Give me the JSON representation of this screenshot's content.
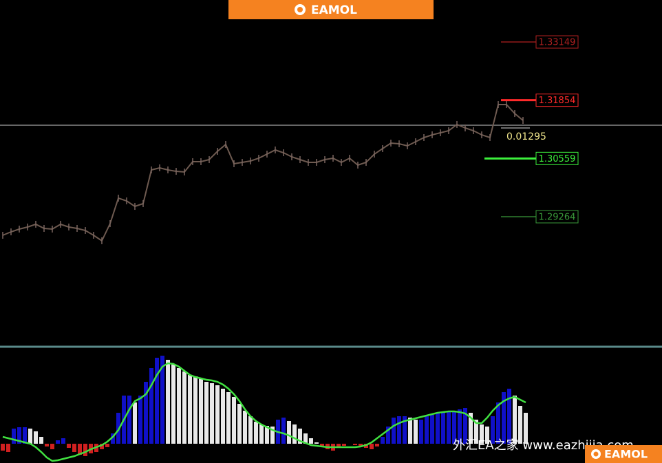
{
  "header": {
    "logo": "EAMOL"
  },
  "levels": [
    {
      "value": 1.33149,
      "color": "#b02020"
    },
    {
      "value": 1.31854,
      "color": "#ff2a2a"
    },
    {
      "value": 1.30559,
      "color": "#3cf03c"
    },
    {
      "value": 1.29264,
      "color": "#3a9a3a"
    }
  ],
  "range_label": 0.01295,
  "price": [
    1.28851,
    1.28927,
    1.28989,
    1.29035,
    1.29096,
    1.29004,
    1.28989,
    1.29096,
    1.29035,
    1.29004,
    1.28958,
    1.28851,
    1.28729,
    1.29111,
    1.29677,
    1.29616,
    1.29493,
    1.29555,
    1.30304,
    1.3035,
    1.30304,
    1.30273,
    1.30258,
    1.30488,
    1.30488,
    1.30533,
    1.30717,
    1.3087,
    1.30442,
    1.30472,
    1.30503,
    1.30564,
    1.30656,
    1.30748,
    1.30686,
    1.30595,
    1.30533,
    1.30472,
    1.30472,
    1.30533,
    1.30564,
    1.30472,
    1.30564,
    1.30411,
    1.30472,
    1.30656,
    1.30778,
    1.30901,
    1.30885,
    1.30839,
    1.30931,
    1.31023,
    1.31084,
    1.3113,
    1.31176,
    1.31314,
    1.31237,
    1.31176,
    1.31084,
    1.31023,
    1.31757,
    1.31757,
    1.31558,
    1.31405
  ],
  "histogram": [
    -10,
    -12,
    22,
    24,
    24,
    22,
    18,
    10,
    -4,
    -8,
    5,
    8,
    -6,
    -12,
    -16,
    -18,
    -14,
    -12,
    -8,
    -5,
    15,
    45,
    70,
    70,
    60,
    70,
    90,
    110,
    125,
    128,
    122,
    115,
    110,
    105,
    100,
    98,
    95,
    90,
    88,
    85,
    80,
    75,
    68,
    58,
    48,
    40,
    32,
    28,
    26,
    25,
    35,
    38,
    33,
    28,
    22,
    15,
    8,
    2,
    -4,
    -8,
    -10,
    -6,
    -3,
    0,
    -2,
    -4,
    -6,
    -8,
    -4,
    10,
    25,
    38,
    40,
    40,
    38,
    35,
    35,
    40,
    42,
    44,
    45,
    46,
    48,
    50,
    52,
    45,
    35,
    28,
    25,
    40,
    60,
    75,
    80,
    70,
    55,
    45
  ],
  "signal": [
    10,
    8,
    6,
    4,
    2,
    0,
    -5,
    -12,
    -20,
    -25,
    -24,
    -22,
    -20,
    -18,
    -15,
    -12,
    -8,
    -5,
    -2,
    3,
    10,
    20,
    35,
    50,
    62,
    66,
    72,
    85,
    100,
    112,
    117,
    116,
    112,
    106,
    100,
    97,
    95,
    93,
    92,
    90,
    86,
    80,
    72,
    62,
    50,
    40,
    33,
    28,
    24,
    20,
    17,
    15,
    12,
    8,
    4,
    1,
    -2,
    -3,
    -4,
    -5,
    -5,
    -5,
    -5,
    -5,
    -5,
    -4,
    -2,
    2,
    8,
    14,
    20,
    26,
    30,
    33,
    35,
    37,
    39,
    41,
    43,
    45,
    46,
    47,
    47,
    46,
    44,
    38,
    30,
    30,
    38,
    48,
    56,
    62,
    66,
    68,
    64,
    60
  ],
  "watermark": "外汇EA之家  www.eazhijia.com"
}
